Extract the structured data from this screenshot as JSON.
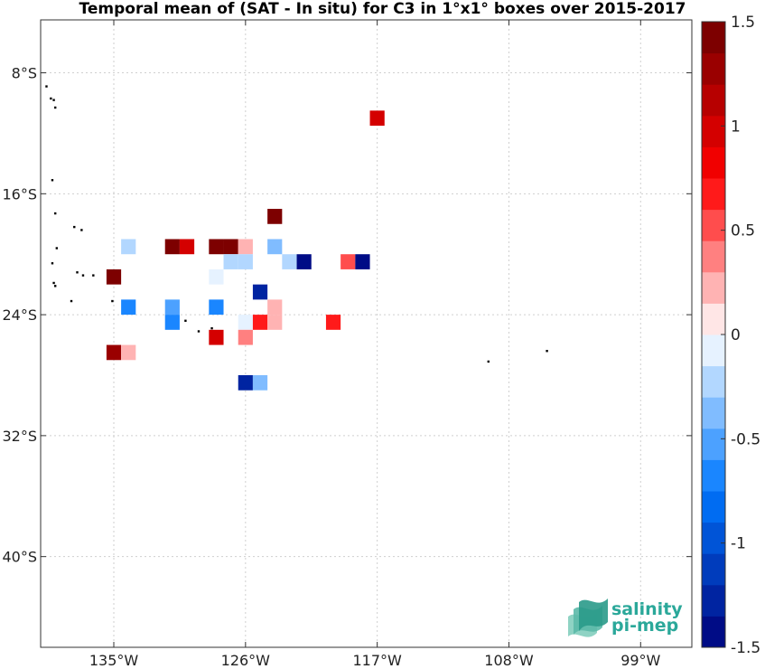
{
  "chart_data": {
    "type": "heatmap",
    "title": "Temporal mean of (SAT - In situ) for C3 in 1°x1° boxes over 2015-2017",
    "x_ticks": [
      {
        "value": -135,
        "label": "135°W"
      },
      {
        "value": -126,
        "label": "126°W"
      },
      {
        "value": -117,
        "label": "117°W"
      },
      {
        "value": -108,
        "label": "108°W"
      },
      {
        "value": -99,
        "label": "99°W"
      }
    ],
    "y_ticks": [
      {
        "value": -8,
        "label": "8°S"
      },
      {
        "value": -16,
        "label": "16°S"
      },
      {
        "value": -24,
        "label": "24°S"
      },
      {
        "value": -32,
        "label": "32°S"
      },
      {
        "value": -40,
        "label": "40°S"
      }
    ],
    "xlim": [
      -140,
      -95.5
    ],
    "ylim": [
      -46,
      -4.5
    ],
    "grid": true,
    "colorbar": {
      "range": [
        -1.5,
        1.5
      ],
      "ticks": [
        {
          "value": 1.5,
          "label": "1.5"
        },
        {
          "value": 1,
          "label": "1"
        },
        {
          "value": 0.5,
          "label": "0.5"
        },
        {
          "value": 0,
          "label": "0"
        },
        {
          "value": -0.5,
          "label": "-0.5"
        },
        {
          "value": -1,
          "label": "-1"
        },
        {
          "value": -1.5,
          "label": "-1.5"
        }
      ]
    },
    "cells": [
      {
        "lon": -117,
        "lat": -11,
        "value": 0.95
      },
      {
        "lon": -124,
        "lat": -17.5,
        "value": 1.45
      },
      {
        "lon": -134,
        "lat": -19.5,
        "value": -0.25
      },
      {
        "lon": -131,
        "lat": -19.5,
        "value": 1.45
      },
      {
        "lon": -130,
        "lat": -19.5,
        "value": 0.95
      },
      {
        "lon": -128,
        "lat": -19.5,
        "value": 1.45
      },
      {
        "lon": -127,
        "lat": -19.5,
        "value": 1.45
      },
      {
        "lon": -126,
        "lat": -19.5,
        "value": 0.25
      },
      {
        "lon": -124,
        "lat": -19.5,
        "value": -0.35
      },
      {
        "lon": -127,
        "lat": -20.5,
        "value": -0.25
      },
      {
        "lon": -126,
        "lat": -20.5,
        "value": -0.25
      },
      {
        "lon": -123,
        "lat": -20.5,
        "value": -0.25
      },
      {
        "lon": -122,
        "lat": -20.5,
        "value": -1.45
      },
      {
        "lon": -119,
        "lat": -20.5,
        "value": 0.55
      },
      {
        "lon": -118,
        "lat": -20.5,
        "value": -1.45
      },
      {
        "lon": -135,
        "lat": -21.5,
        "value": 1.35
      },
      {
        "lon": -128,
        "lat": -21.5,
        "value": -0.15
      },
      {
        "lon": -125,
        "lat": -22.5,
        "value": -1.25
      },
      {
        "lon": -134,
        "lat": -23.5,
        "value": -0.75
      },
      {
        "lon": -131,
        "lat": -23.5,
        "value": -0.55
      },
      {
        "lon": -128,
        "lat": -23.5,
        "value": -0.65
      },
      {
        "lon": -124,
        "lat": -23.5,
        "value": 0.15
      },
      {
        "lon": -131,
        "lat": -24.5,
        "value": -0.75
      },
      {
        "lon": -126,
        "lat": -24.5,
        "value": -0.15
      },
      {
        "lon": -125,
        "lat": -24.5,
        "value": 0.65
      },
      {
        "lon": -124,
        "lat": -24.5,
        "value": 0.15
      },
      {
        "lon": -120,
        "lat": -24.5,
        "value": 0.65
      },
      {
        "lon": -128,
        "lat": -25.5,
        "value": 0.95
      },
      {
        "lon": -126,
        "lat": -25.5,
        "value": 0.35
      },
      {
        "lon": -135,
        "lat": -26.5,
        "value": 1.25
      },
      {
        "lon": -134,
        "lat": -26.5,
        "value": 0.15
      },
      {
        "lon": -126,
        "lat": -28.5,
        "value": -1.25
      },
      {
        "lon": -125,
        "lat": -28.5,
        "value": -0.35
      }
    ],
    "islands": [
      {
        "lon": -139.6,
        "lat": -8.9
      },
      {
        "lon": -139.3,
        "lat": -9.7
      },
      {
        "lon": -139.1,
        "lat": -9.8
      },
      {
        "lon": -139,
        "lat": -10.3
      },
      {
        "lon": -139.2,
        "lat": -15.1
      },
      {
        "lon": -139,
        "lat": -17.3
      },
      {
        "lon": -137.7,
        "lat": -18.2
      },
      {
        "lon": -137.2,
        "lat": -18.4
      },
      {
        "lon": -138.9,
        "lat": -19.6
      },
      {
        "lon": -139.2,
        "lat": -20.6
      },
      {
        "lon": -137.5,
        "lat": -21.2
      },
      {
        "lon": -137.1,
        "lat": -21.4
      },
      {
        "lon": -136.4,
        "lat": -21.4
      },
      {
        "lon": -139.1,
        "lat": -21.9
      },
      {
        "lon": -139,
        "lat": -22.1
      },
      {
        "lon": -137.9,
        "lat": -23.1
      },
      {
        "lon": -135.1,
        "lat": -23.1
      },
      {
        "lon": -130.1,
        "lat": -24.4
      },
      {
        "lon": -128.3,
        "lat": -24.9
      },
      {
        "lon": -129.2,
        "lat": -25.1
      },
      {
        "lon": -109.4,
        "lat": -27.1
      },
      {
        "lon": -105.4,
        "lat": -26.4
      }
    ]
  },
  "logo": {
    "line1": "salinity",
    "line2": "pi-mep"
  }
}
